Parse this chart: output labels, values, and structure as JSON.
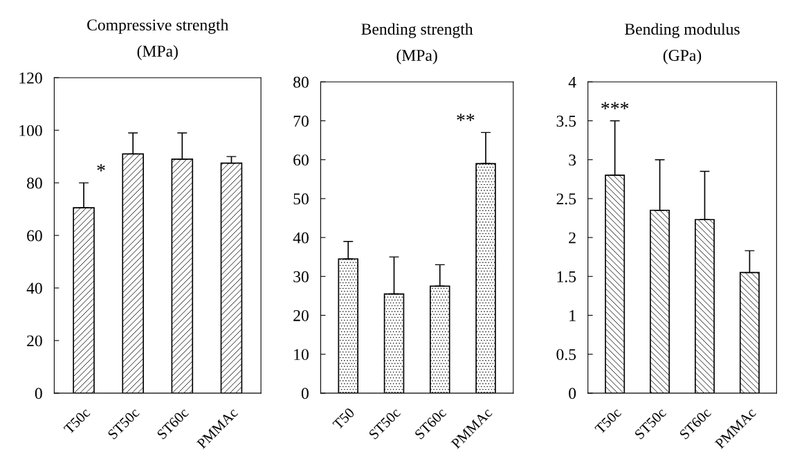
{
  "chart_data": [
    {
      "type": "bar",
      "title": "Compressive strength\n(MPa)",
      "categories": [
        "T50c",
        "ST50c",
        "ST60c",
        "PMMAc"
      ],
      "values": [
        70.5,
        91,
        89,
        87.5
      ],
      "errors": [
        9.5,
        8,
        10,
        2.5
      ],
      "color": "#000000",
      "ylim": [
        0,
        120
      ],
      "yticks": [
        0,
        20,
        40,
        60,
        80,
        100,
        120
      ],
      "grid": false,
      "annotations": [
        {
          "text": "*",
          "x": "T50c",
          "y": 80
        }
      ]
    },
    {
      "type": "bar",
      "title": "Bending strength\n(MPa)",
      "categories": [
        "T50",
        "ST50c",
        "ST60c",
        "PMMAc"
      ],
      "values": [
        34.5,
        25.5,
        27.5,
        59
      ],
      "errors": [
        4.5,
        9.5,
        5.5,
        8
      ],
      "color": "#000000",
      "ylim": [
        0,
        80
      ],
      "yticks": [
        0,
        10,
        20,
        30,
        40,
        50,
        60,
        70,
        80
      ],
      "grid": false,
      "annotations": [
        {
          "text": "**",
          "x": "PMMAc",
          "y": 67
        }
      ]
    },
    {
      "type": "bar",
      "title": "Bending modulus\n(GPa)",
      "categories": [
        "T50c",
        "ST50c",
        "ST60c",
        "PMMAc"
      ],
      "values": [
        2.8,
        2.35,
        2.23,
        1.55
      ],
      "errors": [
        0.7,
        0.65,
        0.62,
        0.28
      ],
      "color": "#000000",
      "ylim": [
        0,
        4
      ],
      "yticks": [
        0,
        0.5,
        1,
        1.5,
        2,
        2.5,
        3,
        3.5,
        4
      ],
      "grid": false,
      "annotations": [
        {
          "text": "***",
          "x": "T50c",
          "y": 3.5
        }
      ]
    }
  ]
}
